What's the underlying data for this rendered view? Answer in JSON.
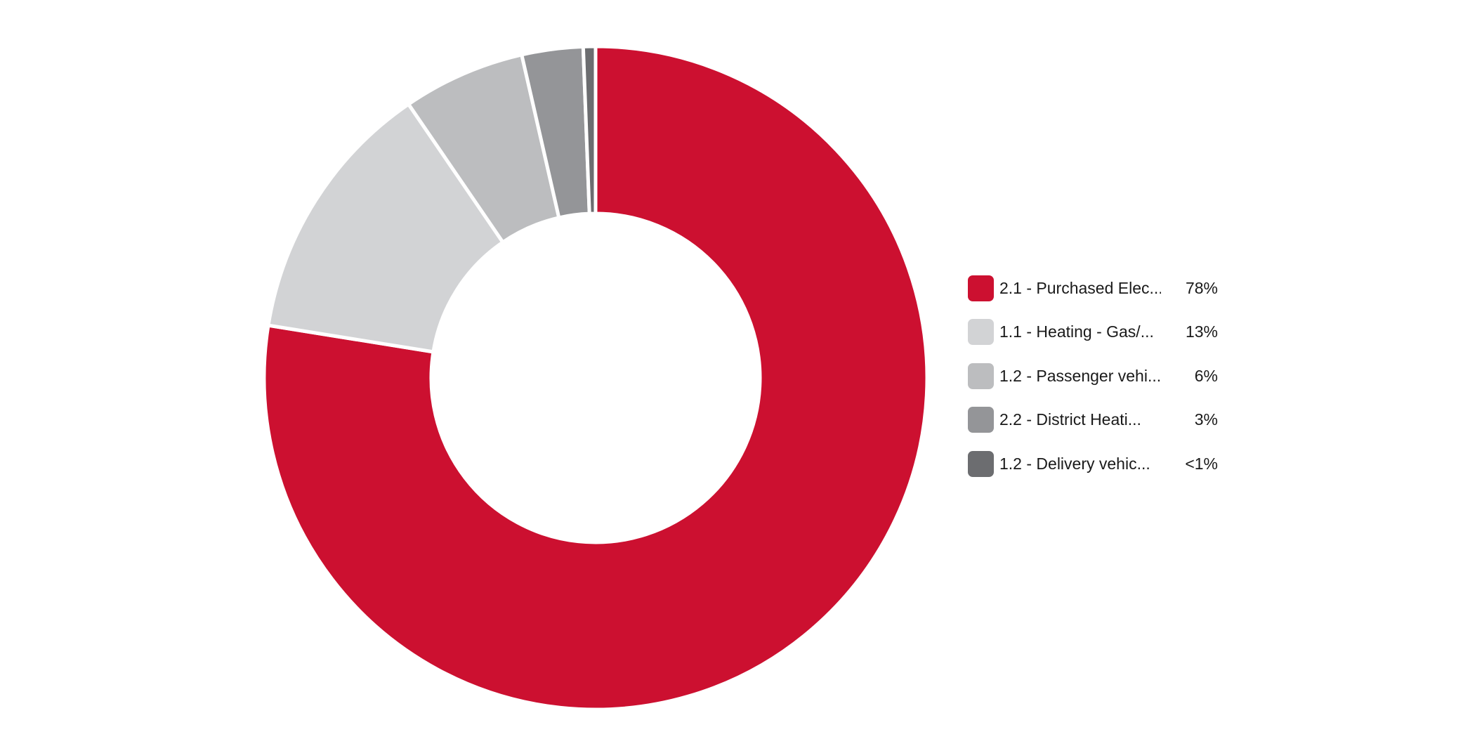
{
  "chart_data": {
    "type": "pie",
    "variant": "donut",
    "title": "",
    "legend_position": "right",
    "slices": [
      {
        "label": "2.1 - Purchased Elec...",
        "value": 78,
        "display": "78%",
        "color": "#cc1030"
      },
      {
        "label": "1.1 - Heating - Gas/...",
        "value": 13,
        "display": "13%",
        "color": "#d2d3d5"
      },
      {
        "label": "1.2 - Passenger vehi...",
        "value": 6,
        "display": "6%",
        "color": "#bcbdbf"
      },
      {
        "label": "2.2 - District Heati...",
        "value": 3,
        "display": "3%",
        "color": "#949598"
      },
      {
        "label": "1.2 - Delivery vehic...",
        "value": 0.6,
        "display": "<1%",
        "color": "#6c6d70"
      }
    ]
  }
}
